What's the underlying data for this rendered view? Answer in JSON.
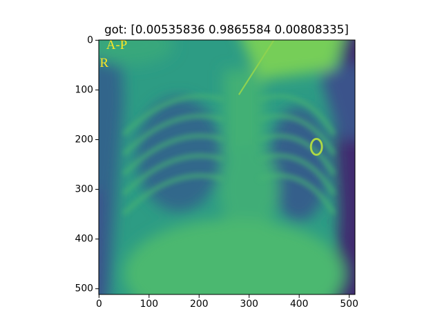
{
  "chart_data": {
    "type": "image",
    "title": "got: [0.00535836 0.9865584  0.00808335]",
    "cmap": "viridis",
    "xlim": [
      -0.5,
      511.5
    ],
    "ylim": [
      511.5,
      -0.5
    ],
    "xticks": [
      0,
      100,
      200,
      300,
      400,
      500
    ],
    "yticks": [
      0,
      100,
      200,
      300,
      400,
      500
    ],
    "annotations": [
      "A-P",
      "R"
    ]
  }
}
